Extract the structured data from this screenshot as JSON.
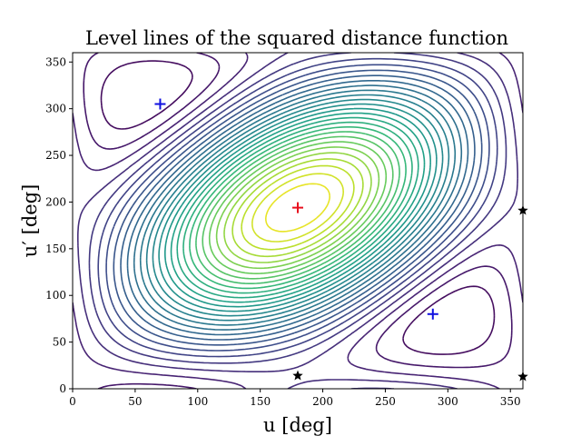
{
  "chart_data": {
    "type": "contour",
    "title": "Level lines of the squared distance function",
    "xlabel": "u [deg]",
    "ylabel": "u′ [deg]",
    "xlim": [
      0,
      360
    ],
    "ylim": [
      0,
      360
    ],
    "xticks": [
      0,
      50,
      100,
      150,
      200,
      250,
      300,
      350
    ],
    "yticks": [
      0,
      50,
      100,
      150,
      200,
      250,
      300,
      350
    ],
    "colormap": "viridis",
    "grid": false,
    "maximum": {
      "x": 180,
      "y": 194,
      "color": "#e8101e",
      "marker": "plus"
    },
    "minima": [
      {
        "x": 70,
        "y": 305,
        "color": "#1010e0",
        "marker": "plus"
      },
      {
        "x": 288,
        "y": 80,
        "color": "#1010e0",
        "marker": "plus"
      }
    ],
    "saddles": [
      {
        "x": 180,
        "y": 14,
        "color": "#000000",
        "marker": "star"
      },
      {
        "x": 360,
        "y": 191,
        "color": "#000000",
        "marker": "star"
      },
      {
        "x": 360,
        "y": 13,
        "color": "#000000",
        "marker": "star"
      }
    ]
  }
}
